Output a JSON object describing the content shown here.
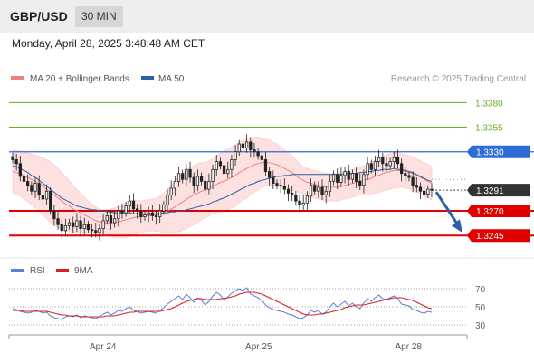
{
  "header": {
    "symbol": "GBP/USD",
    "timeframe": "30 MIN"
  },
  "datetime": "Monday, April 28, 2025 3:48:48 AM CET",
  "legend": {
    "ma20_label": "MA 20 + Bollinger Bands",
    "ma50_label": "MA 50",
    "source": "Research © 2025 Trading Central"
  },
  "rsi_legend": {
    "rsi_label": "RSI",
    "ma_label": "9MA"
  },
  "colors": {
    "resistance": "#6aab2e",
    "pivot": "#2b6dd4",
    "support": "#e00000",
    "ma20": "#f08080",
    "ma50": "#2b5fa6",
    "band_fill": "#fde0e0",
    "candle": "#222222",
    "current": "#333333",
    "rsi": "#5b7fd6",
    "rsi_ma": "#d82020",
    "arrow": "#2b5fa6"
  },
  "chart_data": [
    {
      "type": "candlestick",
      "title": "GBP/USD 30 MIN",
      "ylim": [
        1.3225,
        1.3395
      ],
      "x_ticks": [
        "Apr 24",
        "Apr 25",
        "Apr 28"
      ],
      "levels": [
        {
          "value": 1.338,
          "label": "1.3380",
          "kind": "resistance"
        },
        {
          "value": 1.3355,
          "label": "1.3355",
          "kind": "resistance"
        },
        {
          "value": 1.333,
          "label": "1.3330",
          "kind": "pivot"
        },
        {
          "value": 1.327,
          "label": "1.3270",
          "kind": "support"
        },
        {
          "value": 1.3245,
          "label": "1.3245",
          "kind": "support"
        }
      ],
      "current_price": {
        "value": 1.3291,
        "label": "1.3291"
      },
      "close": [
        1.3322,
        1.3318,
        1.3305,
        1.33,
        1.3296,
        1.329,
        1.3298,
        1.3286,
        1.3282,
        1.329,
        1.327,
        1.3262,
        1.3256,
        1.325,
        1.3255,
        1.3258,
        1.3254,
        1.326,
        1.3252,
        1.3256,
        1.3251,
        1.325,
        1.3248,
        1.3252,
        1.326,
        1.3265,
        1.3258,
        1.3262,
        1.327,
        1.3268,
        1.3275,
        1.328,
        1.3272,
        1.327,
        1.3264,
        1.3266,
        1.3268,
        1.3265,
        1.3264,
        1.327,
        1.3276,
        1.3286,
        1.3293,
        1.33,
        1.3308,
        1.3302,
        1.3312,
        1.3304,
        1.3296,
        1.3305,
        1.33,
        1.3292,
        1.33,
        1.3312,
        1.332,
        1.3316,
        1.3308,
        1.3312,
        1.3322,
        1.333,
        1.3338,
        1.3334,
        1.334,
        1.3332,
        1.333,
        1.3326,
        1.3322,
        1.331,
        1.3304,
        1.3298,
        1.3296,
        1.3295,
        1.3292,
        1.3288,
        1.3286,
        1.328,
        1.3276,
        1.3278,
        1.3285,
        1.3296,
        1.329,
        1.3294,
        1.3286,
        1.329,
        1.33,
        1.3307,
        1.3299,
        1.3306,
        1.331,
        1.3302,
        1.3308,
        1.33,
        1.3296,
        1.3307,
        1.3318,
        1.3312,
        1.332,
        1.3324,
        1.3318,
        1.3316,
        1.332,
        1.3324,
        1.3318,
        1.3308,
        1.3306,
        1.3304,
        1.3296,
        1.3294,
        1.329,
        1.3287,
        1.3292,
        1.3291
      ],
      "ma20": [
        1.331,
        1.3309,
        1.3308,
        1.3306,
        1.3304,
        1.3302,
        1.33,
        1.3298,
        1.3295,
        1.3292,
        1.3289,
        1.3286,
        1.3283,
        1.328,
        1.3277,
        1.3275,
        1.3272,
        1.327,
        1.3268,
        1.3266,
        1.3264,
        1.3262,
        1.326,
        1.3259,
        1.3258,
        1.3258,
        1.3258,
        1.3258,
        1.3259,
        1.326,
        1.3261,
        1.3262,
        1.3263,
        1.3264,
        1.3264,
        1.3265,
        1.3265,
        1.3266,
        1.3266,
        1.3267,
        1.3268,
        1.327,
        1.3272,
        1.3274,
        1.3277,
        1.3279,
        1.3282,
        1.3284,
        1.3286,
        1.3288,
        1.329,
        1.3291,
        1.3293,
        1.3295,
        1.3297,
        1.3299,
        1.33,
        1.3302,
        1.3304,
        1.3306,
        1.3309,
        1.3311,
        1.3313,
        1.3315,
        1.3317,
        1.3318,
        1.3319,
        1.3319,
        1.3319,
        1.3318,
        1.3317,
        1.3315,
        1.3313,
        1.3311,
        1.3309,
        1.3306,
        1.3303,
        1.3301,
        1.3299,
        1.3298,
        1.3297,
        1.3296,
        1.3295,
        1.3294,
        1.3294,
        1.3294,
        1.3294,
        1.3295,
        1.3296,
        1.3297,
        1.3298,
        1.3299,
        1.33,
        1.3301,
        1.3302,
        1.3303,
        1.3305,
        1.3306,
        1.3308,
        1.3309,
        1.331,
        1.3311,
        1.3311,
        1.3311,
        1.331,
        1.3309,
        1.3308,
        1.3306,
        1.3304,
        1.3302,
        1.33,
        1.3298
      ],
      "ma50": [
        1.3316,
        1.3315,
        1.3313,
        1.3311,
        1.3309,
        1.3306,
        1.3304,
        1.3301,
        1.3298,
        1.3295,
        1.3292,
        1.3289,
        1.3286,
        1.3283,
        1.3281,
        1.3279,
        1.3277,
        1.3275,
        1.3274,
        1.3273,
        1.3272,
        1.3271,
        1.3271,
        1.327,
        1.327,
        1.3269,
        1.3269,
        1.3268,
        1.3268,
        1.3268,
        1.3268,
        1.3268,
        1.3267,
        1.3267,
        1.3267,
        1.3267,
        1.3267,
        1.3267,
        1.3267,
        1.3268,
        1.3268,
        1.3268,
        1.3269,
        1.3269,
        1.327,
        1.327,
        1.3271,
        1.3272,
        1.3273,
        1.3274,
        1.3275,
        1.3276,
        1.3277,
        1.3279,
        1.328,
        1.3282,
        1.3283,
        1.3285,
        1.3287,
        1.3289,
        1.3291,
        1.3293,
        1.3295,
        1.3297,
        1.3298,
        1.33,
        1.3301,
        1.3302,
        1.3303,
        1.3304,
        1.3305,
        1.3305,
        1.3306,
        1.3306,
        1.3307,
        1.3307,
        1.3307,
        1.3307,
        1.3307,
        1.3307,
        1.3307,
        1.3307,
        1.3307,
        1.3307,
        1.3307,
        1.3307,
        1.3307,
        1.3307,
        1.3308,
        1.3308,
        1.3308,
        1.3308,
        1.3309,
        1.3309,
        1.331,
        1.331,
        1.3311,
        1.3311,
        1.3312,
        1.3312,
        1.3312,
        1.3313,
        1.3312,
        1.3312,
        1.3311,
        1.331,
        1.3309,
        1.3307,
        1.3305,
        1.3303,
        1.3301,
        1.33
      ],
      "band_width": [
        0.0022,
        0.0022,
        0.0023,
        0.0024,
        0.0025,
        0.0026,
        0.0027,
        0.0028,
        0.0029,
        0.003,
        0.0031,
        0.0031,
        0.003,
        0.0029,
        0.0028,
        0.0026,
        0.0024,
        0.0022,
        0.002,
        0.0018,
        0.0016,
        0.0015,
        0.0014,
        0.0013,
        0.0013,
        0.0013,
        0.0014,
        0.0015,
        0.0016,
        0.0017,
        0.0018,
        0.0018,
        0.0018,
        0.0017,
        0.0016,
        0.0016,
        0.0016,
        0.0016,
        0.0017,
        0.0018,
        0.002,
        0.0022,
        0.0024,
        0.0026,
        0.0028,
        0.0029,
        0.003,
        0.003,
        0.003,
        0.003,
        0.0029,
        0.0028,
        0.0028,
        0.0028,
        0.0029,
        0.003,
        0.0031,
        0.0031,
        0.0031,
        0.0031,
        0.0031,
        0.003,
        0.003,
        0.0029,
        0.0028,
        0.0027,
        0.0025,
        0.0024,
        0.0023,
        0.0022,
        0.0021,
        0.002,
        0.0019,
        0.0018,
        0.0017,
        0.0016,
        0.0015,
        0.0014,
        0.0014,
        0.0014,
        0.0014,
        0.0014,
        0.0014,
        0.0014,
        0.0014,
        0.0014,
        0.0014,
        0.0014,
        0.0014,
        0.0014,
        0.0014,
        0.0014,
        0.0014,
        0.0015,
        0.0016,
        0.0016,
        0.0017,
        0.0017,
        0.0018,
        0.0018,
        0.0018,
        0.0018,
        0.0018,
        0.0017,
        0.0017,
        0.0017,
        0.0017,
        0.0017,
        0.0017,
        0.0017,
        0.0017,
        0.0017
      ],
      "projection": {
        "from": 1.3291,
        "to": 1.3245
      }
    },
    {
      "type": "line",
      "title": "RSI",
      "ylim": [
        25,
        75
      ],
      "y_ticks": [
        70,
        50,
        30
      ],
      "series": [
        {
          "name": "RSI",
          "values": [
            48,
            47,
            45,
            44,
            43,
            44,
            46,
            45,
            43,
            44,
            40,
            38,
            37,
            36,
            39,
            40,
            39,
            41,
            38,
            40,
            39,
            38,
            37,
            39,
            42,
            44,
            41,
            43,
            46,
            45,
            48,
            50,
            46,
            45,
            43,
            44,
            45,
            44,
            43,
            46,
            49,
            53,
            56,
            59,
            62,
            58,
            64,
            60,
            55,
            60,
            57,
            52,
            56,
            62,
            66,
            63,
            58,
            61,
            65,
            68,
            70,
            68,
            71,
            64,
            62,
            60,
            57,
            52,
            49,
            47,
            46,
            45,
            44,
            42,
            41,
            39,
            37,
            38,
            41,
            46,
            44,
            46,
            42,
            44,
            50,
            54,
            50,
            53,
            56,
            51,
            54,
            50,
            48,
            54,
            59,
            56,
            60,
            63,
            59,
            58,
            60,
            62,
            59,
            53,
            52,
            51,
            47,
            46,
            44,
            43,
            45,
            44
          ]
        },
        {
          "name": "9MA",
          "values": [
            46,
            46,
            46,
            45,
            45,
            45,
            45,
            45,
            45,
            45,
            44,
            43,
            42,
            41,
            41,
            40,
            40,
            40,
            39,
            39,
            39,
            39,
            39,
            39,
            39,
            40,
            40,
            40,
            41,
            42,
            43,
            44,
            44,
            45,
            45,
            45,
            45,
            45,
            45,
            45,
            46,
            47,
            48,
            50,
            52,
            54,
            56,
            57,
            58,
            59,
            59,
            58,
            58,
            58,
            58,
            59,
            59,
            60,
            61,
            62,
            64,
            65,
            66,
            66,
            66,
            65,
            64,
            62,
            60,
            58,
            56,
            54,
            52,
            50,
            48,
            46,
            44,
            42,
            41,
            41,
            41,
            42,
            42,
            43,
            44,
            45,
            46,
            47,
            49,
            50,
            51,
            52,
            52,
            52,
            53,
            54,
            55,
            56,
            57,
            58,
            59,
            60,
            60,
            60,
            59,
            58,
            57,
            55,
            53,
            51,
            49,
            48
          ]
        }
      ]
    }
  ]
}
